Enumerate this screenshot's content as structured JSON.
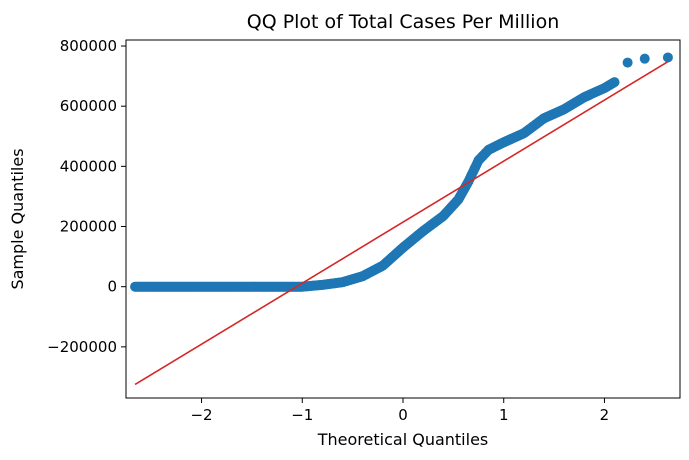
{
  "chart_data": {
    "type": "scatter",
    "title": "QQ Plot of Total Cases Per Million",
    "xlabel": "Theoretical Quantiles",
    "ylabel": "Sample Quantiles",
    "xlim": [
      -2.75,
      2.75
    ],
    "ylim": [
      -370000,
      820000
    ],
    "xticks": [
      -2,
      -1,
      0,
      1,
      2
    ],
    "xtick_labels": [
      "−2",
      "−1",
      "0",
      "1",
      "2"
    ],
    "yticks": [
      -200000,
      0,
      200000,
      400000,
      600000,
      800000
    ],
    "ytick_labels": [
      "−200000",
      "0",
      "200000",
      "400000",
      "600000",
      "800000"
    ],
    "grid": false,
    "legend": "none",
    "series": [
      {
        "kind": "points",
        "color": "#1f77b4",
        "curve": [
          [
            -2.66,
            0
          ],
          [
            -2.4,
            0
          ],
          [
            -2.2,
            0
          ],
          [
            -2.0,
            0
          ],
          [
            -1.8,
            0
          ],
          [
            -1.6,
            0
          ],
          [
            -1.4,
            0
          ],
          [
            -1.2,
            0
          ],
          [
            -1.0,
            0
          ],
          [
            -0.9,
            3000
          ],
          [
            -0.8,
            6000
          ],
          [
            -0.6,
            15000
          ],
          [
            -0.4,
            35000
          ],
          [
            -0.2,
            70000
          ],
          [
            0.0,
            130000
          ],
          [
            0.2,
            185000
          ],
          [
            0.4,
            235000
          ],
          [
            0.55,
            290000
          ],
          [
            0.65,
            350000
          ],
          [
            0.75,
            420000
          ],
          [
            0.85,
            455000
          ],
          [
            1.0,
            480000
          ],
          [
            1.2,
            510000
          ],
          [
            1.4,
            560000
          ],
          [
            1.6,
            590000
          ],
          [
            1.8,
            630000
          ],
          [
            2.0,
            660000
          ],
          [
            2.1,
            680000
          ]
        ],
        "outliers": [
          [
            2.23,
            745000
          ],
          [
            2.4,
            758000
          ],
          [
            2.63,
            762000
          ]
        ]
      },
      {
        "kind": "fit-line",
        "color": "#d62728",
        "x": [
          -2.66,
          2.63
        ],
        "y": [
          -325000,
          748000
        ]
      }
    ]
  }
}
